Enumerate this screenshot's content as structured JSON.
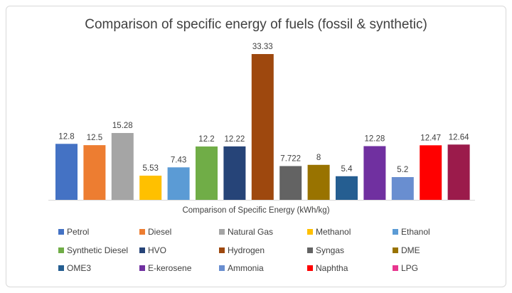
{
  "chart_data": {
    "type": "bar",
    "title": "Comparison of specific energy of fuels (fossil & synthetic)",
    "xlabel": "Comparison of Specific Energy (kWh/kg)",
    "ylabel": "",
    "ylim": [
      0,
      33.33
    ],
    "grid": false,
    "legend_placement": "bottom",
    "categories": [
      "Petrol",
      "Diesel",
      "Natural Gas",
      "Methanol",
      "Ethanol",
      "Synthetic Diesel",
      "HVO",
      "Hydrogen",
      "Syngas",
      "DME",
      "OME3",
      "E-kerosene",
      "Ammonia",
      "Naphtha",
      "LPG"
    ],
    "values": [
      12.8,
      12.5,
      15.28,
      5.53,
      7.43,
      12.2,
      12.22,
      33.33,
      7.722,
      8,
      5.4,
      12.28,
      5.2,
      12.47,
      12.64
    ],
    "labels": [
      "12.8",
      "12.5",
      "15.28",
      "5.53",
      "7.43",
      "12.2",
      "12.22",
      "33.33",
      "7.722",
      "8",
      "5.4",
      "12.28",
      "5.2",
      "12.47",
      "12.64"
    ],
    "colors": [
      "#4472c4",
      "#ed7d31",
      "#a5a5a5",
      "#ffc000",
      "#5b9bd5",
      "#70ad47",
      "#264478",
      "#9e480e",
      "#636363",
      "#997300",
      "#255e91",
      "#7030a0",
      "#698ed0",
      "#ff0000",
      "#9b1b4b"
    ],
    "legend_colors": [
      "#4472c4",
      "#ed7d31",
      "#a5a5a5",
      "#ffc000",
      "#5b9bd5",
      "#70ad47",
      "#264478",
      "#9e480e",
      "#636363",
      "#997300",
      "#255e91",
      "#7030a0",
      "#698ed0",
      "#ff0000",
      "#e8368f"
    ]
  }
}
